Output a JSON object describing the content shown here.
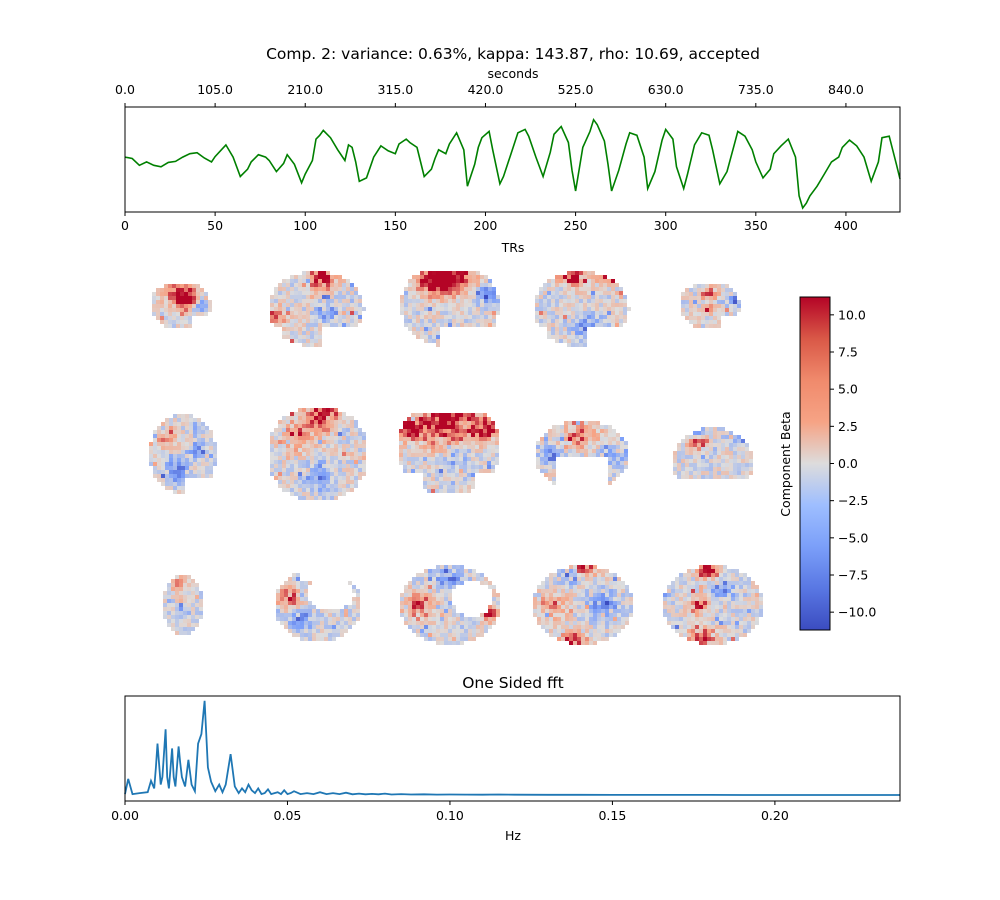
{
  "figure": {
    "title": "Comp. 2: variance: 0.63%, kappa: 143.87, rho: 10.69, accepted"
  },
  "colors": {
    "timeseries": "#008000",
    "fft": "#1f77b4",
    "axis": "#000000",
    "brain_background": "#dcdcdc"
  },
  "chart_data": [
    {
      "type": "line",
      "name": "timeseries",
      "xlabel": "TRs",
      "top_xlabel": "seconds",
      "ylabel": "",
      "xlim": [
        0,
        430
      ],
      "ylim": [
        -1,
        1
      ],
      "x_ticks": [
        0,
        50,
        100,
        150,
        200,
        250,
        300,
        350,
        400
      ],
      "x_tick_labels": [
        "0",
        "50",
        "100",
        "150",
        "200",
        "250",
        "300",
        "350",
        "400"
      ],
      "top_ticks_tr": [
        0,
        50,
        100,
        150,
        200,
        250,
        300,
        350,
        400
      ],
      "top_tick_labels": [
        "0.0",
        "105.0",
        "210.0",
        "315.0",
        "420.0",
        "525.0",
        "630.0",
        "735.0",
        "840.0"
      ],
      "y_ticks_visible": false,
      "series": [
        {
          "x": [
            0,
            4,
            8,
            12,
            16,
            20,
            24,
            28,
            32,
            36,
            40,
            44,
            48,
            50,
            54,
            56,
            60,
            64,
            68,
            70,
            74,
            78,
            80,
            84,
            88,
            90,
            94,
            98,
            100,
            104,
            106,
            108,
            110,
            114,
            118,
            122,
            124,
            126,
            128,
            130,
            134,
            138,
            142,
            146,
            150,
            152,
            156,
            158,
            162,
            166,
            170,
            172,
            174,
            178,
            180,
            184,
            188,
            190,
            194,
            196,
            198,
            202,
            204,
            208,
            210,
            214,
            218,
            222,
            224,
            228,
            232,
            236,
            238,
            242,
            246,
            248,
            250,
            254,
            258,
            260,
            262,
            266,
            268,
            270,
            274,
            278,
            280,
            284,
            288,
            290,
            294,
            298,
            300,
            304,
            306,
            310,
            312,
            316,
            320,
            324,
            326,
            330,
            334,
            338,
            340,
            344,
            348,
            350,
            354,
            358,
            360,
            364,
            368,
            372,
            374,
            376,
            378,
            380,
            384,
            388,
            392,
            396,
            398,
            402,
            406,
            410,
            414,
            418,
            420,
            424,
            428,
            430
          ],
          "y": [
            0.05,
            0.02,
            -0.12,
            -0.05,
            -0.12,
            -0.15,
            -0.06,
            -0.04,
            0.05,
            0.12,
            0.14,
            0.03,
            -0.05,
            0.06,
            0.22,
            0.3,
            0.05,
            -0.35,
            -0.2,
            -0.05,
            0.1,
            0.05,
            -0.02,
            -0.25,
            -0.08,
            0.1,
            -0.1,
            -0.48,
            -0.3,
            -0.02,
            0.42,
            0.5,
            0.6,
            0.45,
            0.2,
            -0.02,
            0.3,
            0.25,
            -0.05,
            -0.45,
            -0.38,
            0.05,
            0.28,
            0.18,
            0.12,
            0.32,
            0.42,
            0.35,
            0.25,
            -0.35,
            -0.2,
            0.02,
            0.2,
            0.12,
            0.32,
            0.55,
            0.2,
            -0.55,
            -0.1,
            0.25,
            0.45,
            0.58,
            0.2,
            -0.5,
            -0.35,
            0.1,
            0.55,
            0.62,
            0.48,
            0.05,
            -0.35,
            0.15,
            0.52,
            0.68,
            0.35,
            -0.22,
            -0.65,
            0.25,
            0.58,
            0.82,
            0.72,
            0.38,
            -0.1,
            -0.65,
            -0.22,
            0.32,
            0.55,
            0.5,
            0.05,
            -0.6,
            -0.25,
            0.4,
            0.62,
            0.42,
            -0.15,
            -0.6,
            -0.32,
            0.3,
            0.55,
            0.5,
            0.2,
            -0.5,
            -0.25,
            0.3,
            0.58,
            0.48,
            0.2,
            -0.05,
            -0.38,
            -0.2,
            0.12,
            0.28,
            0.42,
            0.05,
            -0.75,
            -1.0,
            -0.9,
            -0.75,
            -0.55,
            -0.3,
            -0.05,
            0.05,
            0.25,
            0.4,
            0.28,
            0.05,
            -0.45,
            -0.05,
            0.45,
            0.48,
            -0.1,
            -0.4
          ]
        }
      ]
    },
    {
      "type": "heatmap",
      "name": "component-beta-maps",
      "rows": 3,
      "columns": 5,
      "colorbar": {
        "label": "Component Beta",
        "vmin": -11.2,
        "vmax": 11.2,
        "ticks": [
          10.0,
          7.5,
          5.0,
          2.5,
          0.0,
          -2.5,
          -5.0,
          -7.5,
          -10.0
        ],
        "tick_labels": [
          "10.0",
          "7.5",
          "5.0",
          "2.5",
          "0.0",
          "−2.5",
          "−5.0",
          "−7.5",
          "−10.0"
        ],
        "colormap": "coolwarm"
      },
      "slices": [
        {
          "row": 0,
          "col": 0,
          "shape": "sag-small",
          "hot": [
            [
              0.45,
              0.22,
              0.25,
              1.0
            ],
            [
              0.55,
              0.38,
              0.15,
              0.8
            ]
          ],
          "cold": [
            [
              0.75,
              0.45,
              0.12,
              0.6
            ]
          ]
        },
        {
          "row": 0,
          "col": 1,
          "shape": "sag",
          "hot": [
            [
              0.55,
              0.08,
              0.15,
              1.0
            ],
            [
              0.1,
              0.6,
              0.12,
              0.7
            ]
          ],
          "cold": [
            [
              0.6,
              0.55,
              0.12,
              0.5
            ]
          ]
        },
        {
          "row": 0,
          "col": 2,
          "shape": "sag-large",
          "hot": [
            [
              0.5,
              0.06,
              0.25,
              1.0
            ],
            [
              0.35,
              0.15,
              0.15,
              0.9
            ]
          ],
          "cold": [
            [
              0.85,
              0.3,
              0.12,
              0.8
            ]
          ]
        },
        {
          "row": 0,
          "col": 3,
          "shape": "sag",
          "hot": [
            [
              0.4,
              0.05,
              0.15,
              1.0
            ],
            [
              0.75,
              0.05,
              0.12,
              0.8
            ]
          ],
          "cold": [
            [
              0.55,
              0.7,
              0.15,
              0.6
            ]
          ]
        },
        {
          "row": 0,
          "col": 4,
          "shape": "sag-small",
          "hot": [
            [
              0.45,
              0.2,
              0.12,
              1.0
            ],
            [
              0.45,
              0.5,
              0.1,
              0.8
            ]
          ],
          "cold": [
            [
              0.85,
              0.35,
              0.1,
              0.7
            ]
          ]
        },
        {
          "row": 1,
          "col": 0,
          "shape": "cor-small",
          "hot": [
            [
              0.3,
              0.3,
              0.15,
              0.6
            ]
          ],
          "cold": [
            [
              0.4,
              0.7,
              0.15,
              0.7
            ],
            [
              0.7,
              0.45,
              0.12,
              0.5
            ]
          ]
        },
        {
          "row": 1,
          "col": 1,
          "shape": "cor",
          "hot": [
            [
              0.55,
              0.08,
              0.18,
              0.9
            ],
            [
              0.3,
              0.3,
              0.18,
              0.5
            ]
          ],
          "cold": [
            [
              0.5,
              0.75,
              0.15,
              0.5
            ]
          ]
        },
        {
          "row": 1,
          "col": 2,
          "shape": "cor-large",
          "hot": [
            [
              0.5,
              0.08,
              0.35,
              1.0
            ],
            [
              0.1,
              0.2,
              0.12,
              1.0
            ],
            [
              0.9,
              0.2,
              0.12,
              1.0
            ]
          ],
          "cold": [
            [
              0.6,
              0.55,
              0.15,
              0.5
            ]
          ]
        },
        {
          "row": 1,
          "col": 3,
          "shape": "cor-cut",
          "hot": [
            [
              0.5,
              0.2,
              0.2,
              0.6
            ]
          ],
          "cold": [
            [
              0.15,
              0.5,
              0.12,
              0.7
            ],
            [
              0.85,
              0.5,
              0.12,
              0.6
            ]
          ]
        },
        {
          "row": 1,
          "col": 4,
          "shape": "cor-flat",
          "hot": [
            [
              0.3,
              0.3,
              0.15,
              0.7
            ]
          ],
          "cold": [
            [
              0.85,
              0.2,
              0.12,
              0.9
            ],
            [
              0.3,
              0.1,
              0.12,
              0.6
            ]
          ]
        },
        {
          "row": 2,
          "col": 0,
          "shape": "ax-tiny",
          "hot": [
            [
              0.4,
              0.15,
              0.2,
              0.5
            ]
          ],
          "cold": [
            [
              0.5,
              0.6,
              0.2,
              0.4
            ]
          ]
        },
        {
          "row": 2,
          "col": 1,
          "shape": "ax-cut",
          "hot": [
            [
              0.15,
              0.4,
              0.15,
              0.7
            ]
          ],
          "cold": [
            [
              0.3,
              0.7,
              0.15,
              0.6
            ]
          ]
        },
        {
          "row": 2,
          "col": 2,
          "shape": "ax-hole",
          "hot": [
            [
              0.2,
              0.5,
              0.15,
              0.8
            ],
            [
              0.9,
              0.6,
              0.1,
              0.9
            ]
          ],
          "cold": [
            [
              0.5,
              0.2,
              0.15,
              0.5
            ]
          ]
        },
        {
          "row": 2,
          "col": 3,
          "shape": "ax",
          "hot": [
            [
              0.5,
              0.05,
              0.12,
              1.0
            ],
            [
              0.4,
              0.95,
              0.12,
              1.0
            ],
            [
              0.2,
              0.5,
              0.15,
              0.6
            ]
          ],
          "cold": [
            [
              0.4,
              0.1,
              0.12,
              0.8
            ],
            [
              0.7,
              0.5,
              0.15,
              0.6
            ]
          ]
        },
        {
          "row": 2,
          "col": 4,
          "shape": "ax",
          "hot": [
            [
              0.45,
              0.05,
              0.12,
              1.0
            ],
            [
              0.35,
              0.5,
              0.1,
              0.9
            ],
            [
              0.4,
              0.9,
              0.12,
              1.0
            ]
          ],
          "cold": [
            [
              0.6,
              0.3,
              0.12,
              0.6
            ]
          ]
        }
      ]
    },
    {
      "type": "line",
      "name": "fft",
      "title": "One Sided fft",
      "xlabel": "Hz",
      "ylabel": "",
      "xlim": [
        0,
        0.2385
      ],
      "ylim": [
        0,
        1.05
      ],
      "x_ticks": [
        0.0,
        0.05,
        0.1,
        0.15,
        0.2
      ],
      "x_tick_labels": [
        "0.00",
        "0.05",
        "0.10",
        "0.15",
        "0.20"
      ],
      "y_ticks_visible": false,
      "series": [
        {
          "x": [
            0,
            0.001,
            0.0023,
            0.0045,
            0.007,
            0.008,
            0.009,
            0.0095,
            0.01,
            0.011,
            0.0115,
            0.0125,
            0.013,
            0.0135,
            0.0145,
            0.015,
            0.0155,
            0.0165,
            0.017,
            0.0175,
            0.0185,
            0.0195,
            0.0205,
            0.0215,
            0.0225,
            0.0235,
            0.0245,
            0.0255,
            0.0265,
            0.0278,
            0.029,
            0.03,
            0.031,
            0.0325,
            0.0338,
            0.035,
            0.036,
            0.037,
            0.038,
            0.039,
            0.04,
            0.041,
            0.042,
            0.043,
            0.044,
            0.045,
            0.046,
            0.047,
            0.048,
            0.049,
            0.05,
            0.051,
            0.052,
            0.054,
            0.056,
            0.058,
            0.06,
            0.062,
            0.064,
            0.066,
            0.068,
            0.07,
            0.072,
            0.074,
            0.076,
            0.078,
            0.08,
            0.082,
            0.085,
            0.088,
            0.092,
            0.096,
            0.1,
            0.105,
            0.11,
            0.115,
            0.12,
            0.13,
            0.14,
            0.15,
            0.16,
            0.17,
            0.18,
            0.19,
            0.2,
            0.21,
            0.22,
            0.23,
            0.2385
          ],
          "y": [
            0.02,
            0.18,
            0.02,
            0.03,
            0.04,
            0.16,
            0.08,
            0.3,
            0.55,
            0.12,
            0.2,
            0.7,
            0.2,
            0.08,
            0.5,
            0.2,
            0.1,
            0.52,
            0.35,
            0.2,
            0.1,
            0.38,
            0.12,
            0.05,
            0.55,
            0.65,
            1.0,
            0.3,
            0.15,
            0.05,
            0.12,
            0.04,
            0.12,
            0.44,
            0.1,
            0.03,
            0.08,
            0.04,
            0.12,
            0.06,
            0.03,
            0.08,
            0.02,
            0.03,
            0.07,
            0.02,
            0.03,
            0.04,
            0.02,
            0.06,
            0.02,
            0.03,
            0.05,
            0.02,
            0.03,
            0.02,
            0.04,
            0.02,
            0.03,
            0.02,
            0.035,
            0.018,
            0.025,
            0.018,
            0.022,
            0.018,
            0.025,
            0.016,
            0.02,
            0.016,
            0.018,
            0.015,
            0.016,
            0.015,
            0.014,
            0.016,
            0.014,
            0.013,
            0.013,
            0.012,
            0.012,
            0.012,
            0.012,
            0.011,
            0.011,
            0.011,
            0.011,
            0.011,
            0.011
          ]
        }
      ]
    }
  ]
}
